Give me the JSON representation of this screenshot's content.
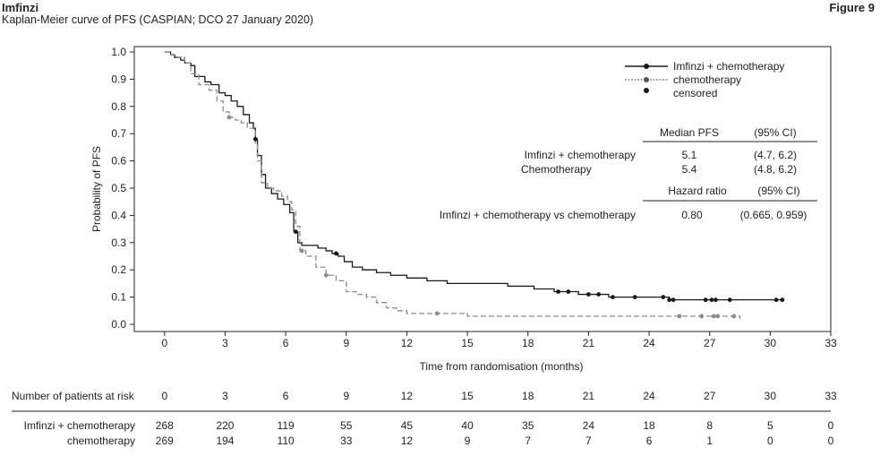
{
  "header": {
    "product": "Imfinzi",
    "subtitle": "Kaplan-Meier curve of PFS (CASPIAN; DCO 27 January 2020)",
    "figure_label": "Figure 9"
  },
  "colors": {
    "imfinzi": "#1a1a1a",
    "chemo": "#8c8c8c"
  },
  "chart_data": {
    "type": "line",
    "ylabel": "Probability of PFS",
    "xlabel": "Time from randomisation (months)",
    "xlim": [
      -1.5,
      33
    ],
    "ylim": [
      0,
      1.0
    ],
    "xticks": [
      "0",
      "3",
      "6",
      "9",
      "12",
      "15",
      "18",
      "21",
      "24",
      "27",
      "30",
      "33"
    ],
    "yticks": [
      "0.0",
      "0.1",
      "0.2",
      "0.3",
      "0.4",
      "0.5",
      "0.6",
      "0.7",
      "0.8",
      "0.9",
      "1.0"
    ],
    "grid": false,
    "legend_position": "top-right",
    "legend": [
      "Imfinzi + chemotherapy",
      "chemotherapy",
      "censored"
    ],
    "series": [
      {
        "name": "Imfinzi + chemotherapy",
        "style": "solid",
        "x": [
          0,
          0.3,
          0.5,
          0.8,
          1.0,
          1.3,
          1.5,
          2.0,
          2.3,
          2.7,
          3.0,
          3.3,
          3.6,
          3.9,
          4.2,
          4.4,
          4.5,
          4.6,
          4.8,
          5.0,
          5.3,
          5.6,
          5.9,
          6.2,
          6.4,
          6.6,
          6.8,
          7.2,
          7.6,
          8.0,
          8.3,
          8.6,
          8.9,
          9.3,
          9.8,
          10.5,
          11.2,
          12.0,
          13.0,
          14.0,
          15.5,
          17.0,
          18.3,
          19.3,
          20.5,
          22.0,
          25.0,
          27.0,
          30.5
        ],
        "y": [
          1.0,
          0.99,
          0.98,
          0.97,
          0.96,
          0.95,
          0.91,
          0.89,
          0.88,
          0.85,
          0.84,
          0.82,
          0.8,
          0.77,
          0.74,
          0.72,
          0.68,
          0.62,
          0.55,
          0.5,
          0.48,
          0.46,
          0.44,
          0.41,
          0.34,
          0.3,
          0.29,
          0.29,
          0.28,
          0.27,
          0.26,
          0.25,
          0.23,
          0.21,
          0.2,
          0.19,
          0.18,
          0.17,
          0.16,
          0.15,
          0.15,
          0.14,
          0.13,
          0.12,
          0.11,
          0.1,
          0.09,
          0.09,
          0.09
        ]
      },
      {
        "name": "chemotherapy",
        "style": "dashed",
        "x": [
          0,
          0.3,
          0.6,
          1.0,
          1.3,
          1.7,
          2.2,
          2.6,
          2.9,
          3.2,
          3.5,
          3.8,
          4.1,
          4.4,
          4.5,
          4.6,
          4.8,
          5.1,
          5.4,
          5.8,
          6.1,
          6.3,
          6.5,
          6.7,
          7.0,
          7.5,
          8.0,
          8.5,
          9.0,
          9.5,
          10.0,
          10.5,
          11.0,
          11.5,
          12.0,
          13.5,
          15.0,
          17.0,
          19.0,
          21.0,
          24.0,
          28.5
        ],
        "y": [
          1.0,
          0.99,
          0.98,
          0.96,
          0.92,
          0.88,
          0.86,
          0.82,
          0.78,
          0.76,
          0.75,
          0.74,
          0.72,
          0.71,
          0.66,
          0.6,
          0.52,
          0.5,
          0.49,
          0.47,
          0.45,
          0.42,
          0.36,
          0.27,
          0.25,
          0.21,
          0.18,
          0.16,
          0.12,
          0.11,
          0.1,
          0.08,
          0.06,
          0.05,
          0.04,
          0.04,
          0.03,
          0.03,
          0.03,
          0.03,
          0.03,
          0.02
        ]
      }
    ],
    "censored": [
      {
        "series": "Imfinzi + chemotherapy",
        "x": [
          4.5,
          6.5,
          8.5,
          19.5,
          20.0,
          21.0,
          21.5,
          22.2,
          23.3,
          24.7,
          25.0,
          25.2,
          26.8,
          27.1,
          27.3,
          28.0,
          30.3,
          30.6
        ]
      },
      {
        "series": "chemotherapy",
        "x": [
          3.2,
          6.8,
          8.0,
          13.5,
          25.5,
          26.6,
          27.2,
          27.4,
          28.2
        ]
      }
    ]
  },
  "summary_table": {
    "col1": "Median PFS",
    "col2": "(95% CI)",
    "rows": [
      {
        "label": "Imfinzi + chemotherapy",
        "value": "5.1",
        "ci": "(4.7, 6.2)"
      },
      {
        "label": "Chemotherapy",
        "value": "5.4",
        "ci": "(4.8, 6.2)"
      }
    ],
    "hr_col1": "Hazard ratio",
    "hr_col2": "(95% CI)",
    "hr_row": {
      "label": "Imfinzi + chemotherapy vs chemotherapy",
      "value": "0.80",
      "ci": "(0.665, 0.959)"
    }
  },
  "risk_table": {
    "title": "Number of patients at risk",
    "times": [
      "0",
      "3",
      "6",
      "9",
      "12",
      "15",
      "18",
      "21",
      "24",
      "27",
      "30",
      "33"
    ],
    "rows": [
      {
        "label": "Imfinzi + chemotherapy",
        "values": [
          "268",
          "220",
          "119",
          "55",
          "45",
          "40",
          "35",
          "24",
          "18",
          "8",
          "5",
          "0"
        ]
      },
      {
        "label": "chemotherapy",
        "values": [
          "269",
          "194",
          "110",
          "33",
          "12",
          "9",
          "7",
          "7",
          "6",
          "1",
          "0",
          "0"
        ]
      }
    ]
  }
}
